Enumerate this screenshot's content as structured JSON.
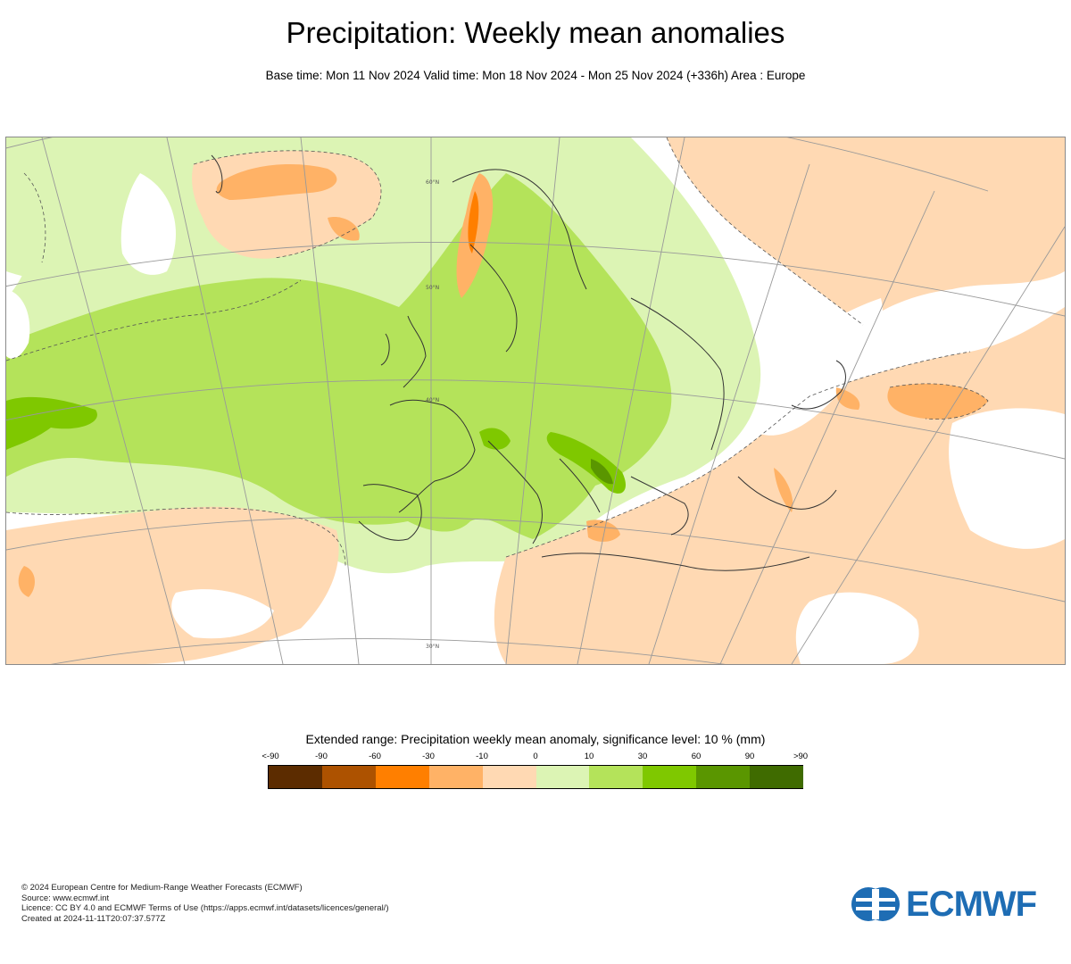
{
  "header": {
    "title": "Precipitation: Weekly mean anomalies",
    "subtitle": "Base time: Mon 11 Nov 2024 Valid time: Mon 18 Nov 2024 - Mon 25 Nov 2024 (+336h) Area : Europe"
  },
  "map": {
    "area": "Europe",
    "graticule_labels": [
      "60°N",
      "50°N",
      "40°N",
      "30°N"
    ]
  },
  "legend": {
    "title": "Extended range: Precipitation weekly mean anomaly, significance level: 10 % (mm)",
    "labels": [
      "<-90",
      "-90",
      "-60",
      "-30",
      "-10",
      "0",
      "10",
      "30",
      "60",
      "90",
      ">90"
    ],
    "colors": [
      "#5c2c00",
      "#ad5200",
      "#ff7f00",
      "#ffb266",
      "#ffd9b3",
      "#dcf4b4",
      "#b4e35a",
      "#7fc800",
      "#5a9600",
      "#3f6b00"
    ]
  },
  "footer": {
    "lines": [
      "© 2024 European Centre for Medium-Range Weather Forecasts (ECMWF)",
      "Source: www.ecmwf.int",
      "Licence: CC BY 4.0 and ECMWF Terms of Use (https://apps.ecmwf.int/datasets/licences/general/)",
      "Created at 2024-11-11T20:07:37.577Z"
    ]
  },
  "logo": {
    "text": "ECMWF",
    "color": "#1e6db4"
  }
}
